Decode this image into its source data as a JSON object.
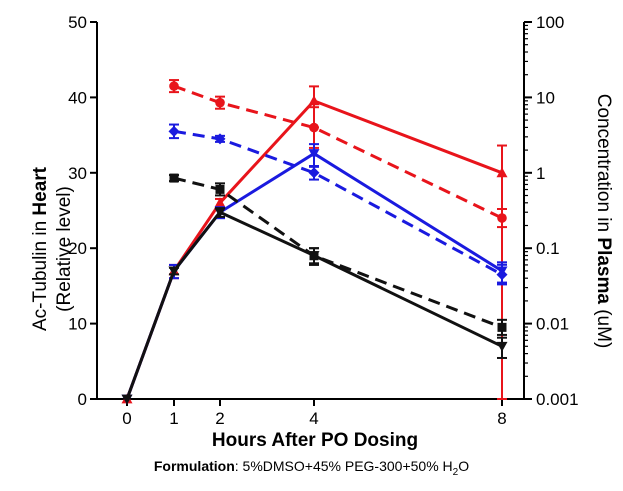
{
  "chart_data": {
    "type": "line",
    "xlabel": "Hours After PO Dosing",
    "ylabel_left": {
      "prefix": "Ac-Tubulin in ",
      "bold": "Heart",
      "line2": "(Relative level)"
    },
    "ylabel_right": {
      "prefix": "Concentration in ",
      "bold": "Plasma",
      "suffix": " (uM)"
    },
    "x_ticks": [
      0,
      1,
      2,
      4,
      8
    ],
    "x_tick_labels": [
      "0",
      "1",
      "2",
      "4",
      "8"
    ],
    "left_axis": {
      "range": [
        0,
        50
      ],
      "ticks": [
        0,
        10,
        20,
        30,
        40,
        50
      ],
      "tick_labels": [
        "0",
        "10",
        "20",
        "30",
        "40",
        "50"
      ]
    },
    "right_axis": {
      "scale": "log",
      "range": [
        0.001,
        100
      ],
      "ticks": [
        0.001,
        0.01,
        0.1,
        1,
        10,
        100
      ],
      "tick_labels": [
        "0.001",
        "0.01",
        "0.1",
        "1",
        "10",
        "100"
      ]
    },
    "grid": false,
    "series": [
      {
        "color": "#e8141b",
        "style": "solid",
        "axis": "right",
        "marker": "triangle-up",
        "points": [
          {
            "x": 0,
            "y": 0.001,
            "err": 0
          },
          {
            "x": 1,
            "y": 0.05,
            "err": 0.01
          },
          {
            "x": 2,
            "y": 0.4,
            "err": 0.05
          },
          {
            "x": 4,
            "y": 9,
            "err": 5
          },
          {
            "x": 8,
            "y": 1,
            "err": 1.3
          }
        ]
      },
      {
        "color": "#e8141b",
        "style": "dashed",
        "axis": "left",
        "marker": "circle",
        "points": [
          {
            "x": 1,
            "y": 41.5,
            "err": 0.8
          },
          {
            "x": 2,
            "y": 39.3,
            "err": 0.8
          },
          {
            "x": 4,
            "y": 36.0,
            "err": 2.7
          },
          {
            "x": 8,
            "y": 24.0,
            "err": 1.2
          }
        ]
      },
      {
        "color": "#1a1adf",
        "style": "solid",
        "axis": "right",
        "marker": "triangle-down",
        "points": [
          {
            "x": 0,
            "y": 0.001,
            "err": 0
          },
          {
            "x": 1,
            "y": 0.05,
            "err": 0.01
          },
          {
            "x": 2,
            "y": 0.3,
            "err": 0.05
          },
          {
            "x": 4,
            "y": 1.8,
            "err": 0.6
          },
          {
            "x": 8,
            "y": 0.05,
            "err": 0.015
          }
        ]
      },
      {
        "color": "#1a1adf",
        "style": "dashed",
        "axis": "left",
        "marker": "diamond",
        "points": [
          {
            "x": 1,
            "y": 35.5,
            "err": 0.9
          },
          {
            "x": 2,
            "y": 34.5,
            "err": 0.4
          },
          {
            "x": 4,
            "y": 30.0,
            "err": 0.9
          },
          {
            "x": 8,
            "y": 16.5,
            "err": 1.3
          }
        ]
      },
      {
        "color": "#111111",
        "style": "solid",
        "axis": "right",
        "marker": "triangle-down",
        "points": [
          {
            "x": 0,
            "y": 0.001,
            "err": 0
          },
          {
            "x": 1,
            "y": 0.05,
            "err": 0.005
          },
          {
            "x": 2,
            "y": 0.3,
            "err": 0.04
          },
          {
            "x": 4,
            "y": 0.08,
            "err": 0.02
          },
          {
            "x": 8,
            "y": 0.005,
            "err": 0.0015
          }
        ]
      },
      {
        "color": "#111111",
        "style": "dashed",
        "axis": "left",
        "marker": "square",
        "points": [
          {
            "x": 1,
            "y": 29.3,
            "err": 0.4
          },
          {
            "x": 2,
            "y": 27.8,
            "err": 0.8
          },
          {
            "x": 4,
            "y": 19.0,
            "err": 1.0
          },
          {
            "x": 8,
            "y": 9.5,
            "err": 1.0
          }
        ]
      }
    ]
  },
  "footnote": {
    "label": "Formulation",
    "text_1": ": 5%DMSO+45% PEG-300+50% H",
    "sub": "2",
    "text_2": "O"
  }
}
